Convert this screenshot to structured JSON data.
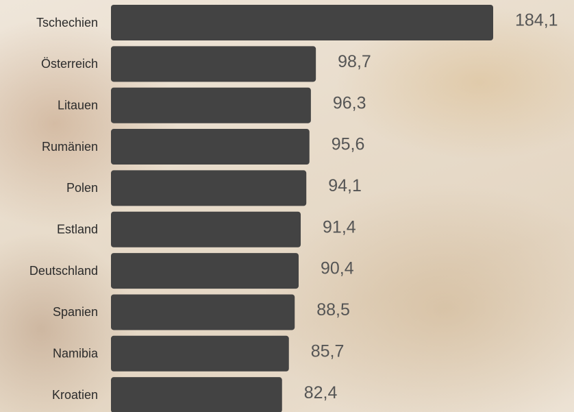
{
  "chart_data": {
    "type": "bar",
    "orientation": "horizontal",
    "categories": [
      "Tschechien",
      "Österreich",
      "Litauen",
      "Rumänien",
      "Polen",
      "Estland",
      "Deutschland",
      "Spanien",
      "Namibia",
      "Kroatien"
    ],
    "values": [
      184.1,
      98.7,
      96.3,
      95.6,
      94.1,
      91.4,
      90.4,
      88.5,
      85.7,
      82.4
    ],
    "value_labels": [
      "184,1",
      "98,7",
      "96,3",
      "95,6",
      "94,1",
      "91,4",
      "90,4",
      "88,5",
      "85,7",
      "82,4"
    ],
    "color": "#434343"
  }
}
